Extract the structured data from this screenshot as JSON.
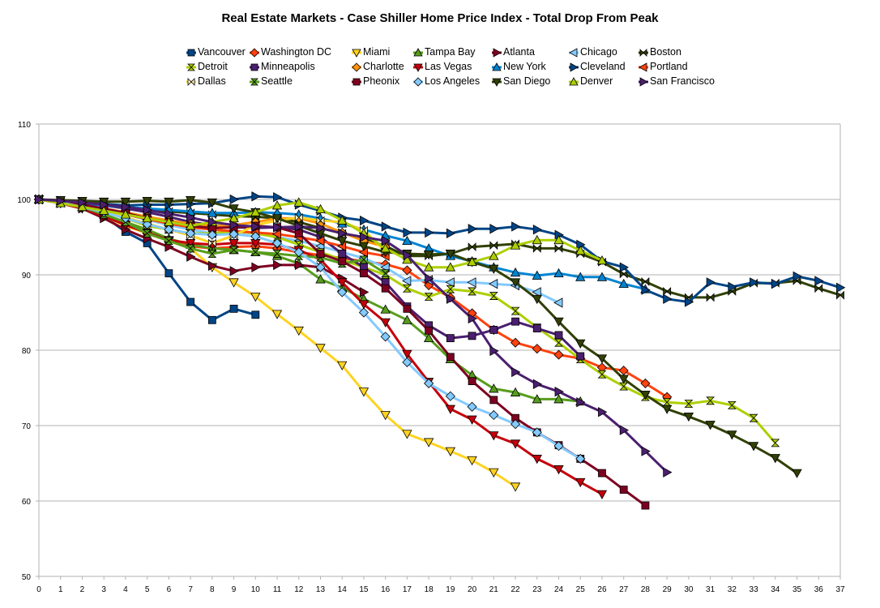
{
  "chart_data": {
    "type": "line",
    "title": "Real Estate Markets - Case Shiller Home Price Index - Total Drop From Peak",
    "xlabel": "",
    "ylabel": "",
    "xlim": [
      0,
      37
    ],
    "ylim": [
      50,
      110
    ],
    "x_ticks": [
      0,
      1,
      2,
      3,
      4,
      5,
      6,
      7,
      8,
      9,
      10,
      11,
      12,
      13,
      14,
      15,
      16,
      17,
      18,
      19,
      20,
      21,
      22,
      23,
      24,
      25,
      26,
      27,
      28,
      29,
      30,
      31,
      32,
      33,
      34,
      35,
      36,
      37
    ],
    "y_ticks": [
      50,
      60,
      70,
      80,
      90,
      100,
      110
    ],
    "grid": "horizontal",
    "legend_position": "top",
    "series": [
      {
        "name": "Vancouver",
        "color": "#004586",
        "marker": "square",
        "values": [
          100,
          99.8,
          99.5,
          97.8,
          95.7,
          94.2,
          90.2,
          86.4,
          84,
          85.5,
          84.7
        ]
      },
      {
        "name": "Washington DC",
        "color": "#FF420E",
        "marker": "diamond",
        "values": [
          100,
          99.6,
          99,
          98,
          96.8,
          95.5,
          94.5,
          93.8,
          93.5,
          93.7,
          93.8,
          93.5,
          93,
          92.6,
          92.2,
          91.8,
          91.4,
          90.6,
          88.6,
          87,
          84.9,
          82.7,
          81,
          80.2,
          79.4,
          78.9,
          77.7,
          77.3,
          75.6,
          73.8
        ]
      },
      {
        "name": "Miami",
        "color": "#FFD320",
        "marker": "triangle-down",
        "values": [
          100,
          99.5,
          98.8,
          97.8,
          96.5,
          95.5,
          94.5,
          93.5,
          91,
          89,
          87.1,
          84.8,
          82.6,
          80.3,
          78,
          74.5,
          71.4,
          68.9,
          67.8,
          66.6,
          65.4,
          63.8,
          61.9
        ]
      },
      {
        "name": "Tampa Bay",
        "color": "#579D1C",
        "marker": "triangle-up",
        "values": [
          100,
          99.5,
          99,
          98,
          97,
          96,
          94.8,
          94,
          93.5,
          93.3,
          93,
          92.5,
          91.5,
          89.4,
          88.3,
          86.8,
          85.4,
          84,
          81.6,
          78.8,
          76.7,
          74.9,
          74.4,
          73.5,
          73.5,
          73.2
        ]
      },
      {
        "name": "Atlanta",
        "color": "#7E0021",
        "marker": "triangle-right",
        "values": [
          100,
          99.5,
          98.8,
          97.5,
          96,
          94.8,
          93.7,
          92.4,
          91.2,
          90.5,
          91,
          91.3,
          91.3,
          91,
          89.5,
          87.7
        ]
      },
      {
        "name": "Chicago",
        "color": "#83CAFF",
        "marker": "triangle-left",
        "values": [
          100,
          99.7,
          99.3,
          98.7,
          98,
          97.3,
          96.6,
          96,
          95.5,
          95.7,
          95.5,
          95,
          94.5,
          93.8,
          93,
          92.2,
          91,
          89.2,
          89.3,
          89,
          89,
          88.8,
          88.6,
          87.7,
          86.3
        ]
      },
      {
        "name": "Boston",
        "color": "#314004",
        "marker": "bowtie",
        "values": [
          100,
          99.8,
          99.6,
          99.3,
          99,
          98.7,
          98.4,
          98.2,
          98,
          97.8,
          97.7,
          97.5,
          97,
          96.2,
          95.5,
          94.8,
          93.8,
          92.5,
          92.5,
          92.8,
          93.7,
          93.9,
          94.1,
          93.5,
          93.5,
          92.8,
          91.7,
          90.1,
          89.1,
          87.8,
          87,
          87,
          87.8,
          88.9,
          88.9,
          89.2,
          88.2,
          87.3
        ]
      },
      {
        "name": "Detroit",
        "color": "#AECF00",
        "marker": "hourglass",
        "values": [
          100,
          99.5,
          99,
          98.3,
          97.5,
          96.5,
          96,
          95.5,
          95.5,
          95.8,
          95.5,
          95,
          94,
          93,
          92,
          91,
          90,
          88.2,
          87.1,
          88.1,
          87.8,
          87.2,
          85.2,
          83,
          81,
          78.8,
          76.8,
          75.2,
          73.8,
          73.1,
          72.9,
          73.3,
          72.7,
          71,
          67.7
        ]
      },
      {
        "name": "Minneapolis",
        "color": "#4B1F6F",
        "marker": "square",
        "values": [
          100,
          99.8,
          99.5,
          99.2,
          98.8,
          98.3,
          97.7,
          97,
          96.6,
          96.3,
          96.2,
          96.3,
          96,
          95,
          92.8,
          91,
          89,
          85.8,
          83.3,
          81.6,
          81.9,
          82.7,
          83.8,
          82.9,
          82,
          79.2
        ]
      },
      {
        "name": "Charlotte",
        "color": "#FF950E",
        "marker": "diamond",
        "values": [
          100,
          99.6,
          99.2,
          98.8,
          98.3,
          97.7,
          97.2,
          96.8,
          96.5,
          96.6,
          97,
          97.5,
          97.5,
          96.8,
          95.6,
          94.5,
          93.7
        ]
      },
      {
        "name": "Las Vegas",
        "color": "#C5000B",
        "marker": "triangle-down",
        "values": [
          100,
          99.5,
          98.8,
          97.8,
          96.6,
          95.6,
          94.6,
          94.2,
          94,
          94.2,
          94.2,
          94,
          93.3,
          92,
          89,
          86.1,
          83.7,
          79.5,
          75.8,
          72.2,
          70.8,
          68.7,
          67.6,
          65.6,
          64.2,
          62.5,
          60.9
        ]
      },
      {
        "name": "New York",
        "color": "#0084D1",
        "marker": "triangle-up",
        "values": [
          100,
          99.8,
          99.5,
          99.2,
          99,
          98.8,
          98.6,
          98.4,
          98.2,
          98.2,
          98.3,
          98.2,
          98,
          97.5,
          96.8,
          96,
          95.2,
          94.5,
          93.5,
          92.5,
          91.8,
          91,
          90.3,
          89.9,
          90.2,
          89.7,
          89.7,
          88.8,
          88.1
        ]
      },
      {
        "name": "Cleveland",
        "color": "#004586",
        "marker": "triangle-right",
        "values": [
          100,
          99.8,
          99.6,
          99.4,
          99.2,
          99.3,
          99.3,
          99.4,
          99.5,
          100,
          100.4,
          100.3,
          99.3,
          98.5,
          97.6,
          97.2,
          96.4,
          95.6,
          95.6,
          95.5,
          96.1,
          96.1,
          96.4,
          96,
          95.3,
          94,
          91.8,
          91,
          88,
          86.8,
          86.4,
          89,
          88.4,
          89,
          88.8,
          89.8,
          89.2,
          88.3
        ]
      },
      {
        "name": "Portland",
        "color": "#FF420E",
        "marker": "triangle-left",
        "values": [
          100,
          99.7,
          99.2,
          98.7,
          98,
          97.4,
          96.8,
          96.3,
          96,
          95.8,
          95.6,
          95.4,
          95,
          94.5,
          93.8,
          93,
          92.5
        ]
      },
      {
        "name": "Dallas",
        "color": "#FFD320",
        "marker": "bowtie-hollow",
        "values": [
          100,
          99.5,
          99,
          98.4,
          97.6,
          96.8,
          96,
          95.2,
          94.2,
          95.2,
          96.6,
          97.2,
          97.6,
          97.2,
          97,
          95.9,
          93.1
        ]
      },
      {
        "name": "Seattle",
        "color": "#579D1C",
        "marker": "hourglass",
        "values": [
          100,
          99.5,
          99,
          98,
          97,
          95.5,
          94.5,
          93.5,
          92.8,
          93.3,
          93,
          92.8,
          92.5,
          92.3,
          91.5,
          92,
          90.2
        ]
      },
      {
        "name": "Pheonix",
        "color": "#7E0021",
        "marker": "square",
        "values": [
          100,
          99.7,
          99.3,
          98.8,
          98.2,
          97.5,
          97,
          96.5,
          96.2,
          96.3,
          96.5,
          96.3,
          95.5,
          92.8,
          91.8,
          90.2,
          88.2,
          85.5,
          82.6,
          79.1,
          75.9,
          73.4,
          71,
          69.1,
          67.4,
          65.6,
          63.7,
          61.5,
          59.4
        ]
      },
      {
        "name": "Los Angeles",
        "color": "#83CAFF",
        "marker": "diamond",
        "values": [
          100,
          99.6,
          99,
          98.3,
          97.5,
          96.7,
          96,
          95.5,
          95.3,
          95.4,
          95.1,
          94.2,
          93,
          91,
          87.7,
          85,
          81.8,
          78.4,
          75.6,
          73.9,
          72.5,
          71.4,
          70.2,
          69.1,
          67.3,
          65.6
        ]
      },
      {
        "name": "San Diego",
        "color": "#314004",
        "marker": "triangle-down",
        "values": [
          100,
          99.9,
          99.8,
          99.7,
          99.7,
          99.8,
          99.7,
          99.9,
          99.6,
          98.8,
          98.3,
          97.5,
          96.5,
          95.5,
          94.5,
          93.8,
          93,
          92.8,
          92.7,
          92.8,
          91.7,
          90.8,
          89,
          86.8,
          83.8,
          80.9,
          78.9,
          76.2,
          74.1,
          72.2,
          71.2,
          70.1,
          68.8,
          67.3,
          65.7,
          63.7
        ]
      },
      {
        "name": "Denver",
        "color": "#AECF00",
        "marker": "triangle-up",
        "values": [
          100,
          99.5,
          99,
          98.5,
          98,
          97.5,
          97,
          96.5,
          97,
          97.5,
          98.3,
          99.2,
          99.6,
          98.7,
          97.2,
          95.5,
          93.5,
          92,
          91,
          91,
          91.7,
          92.5,
          93.9,
          94.6,
          94.6,
          93.2,
          91.9
        ]
      },
      {
        "name": "San Francisco",
        "color": "#4B1F6F",
        "marker": "triangle-right",
        "values": [
          100,
          99.8,
          99.6,
          99.3,
          99,
          98.6,
          98.1,
          97.6,
          97,
          96.6,
          96.4,
          96.3,
          96.4,
          96.2,
          95.5,
          95,
          94.5,
          92.6,
          89.5,
          86.8,
          84.2,
          79.9,
          77.1,
          75.5,
          74.5,
          73.1,
          71.8,
          69.4,
          66.6,
          63.8
        ]
      }
    ]
  }
}
